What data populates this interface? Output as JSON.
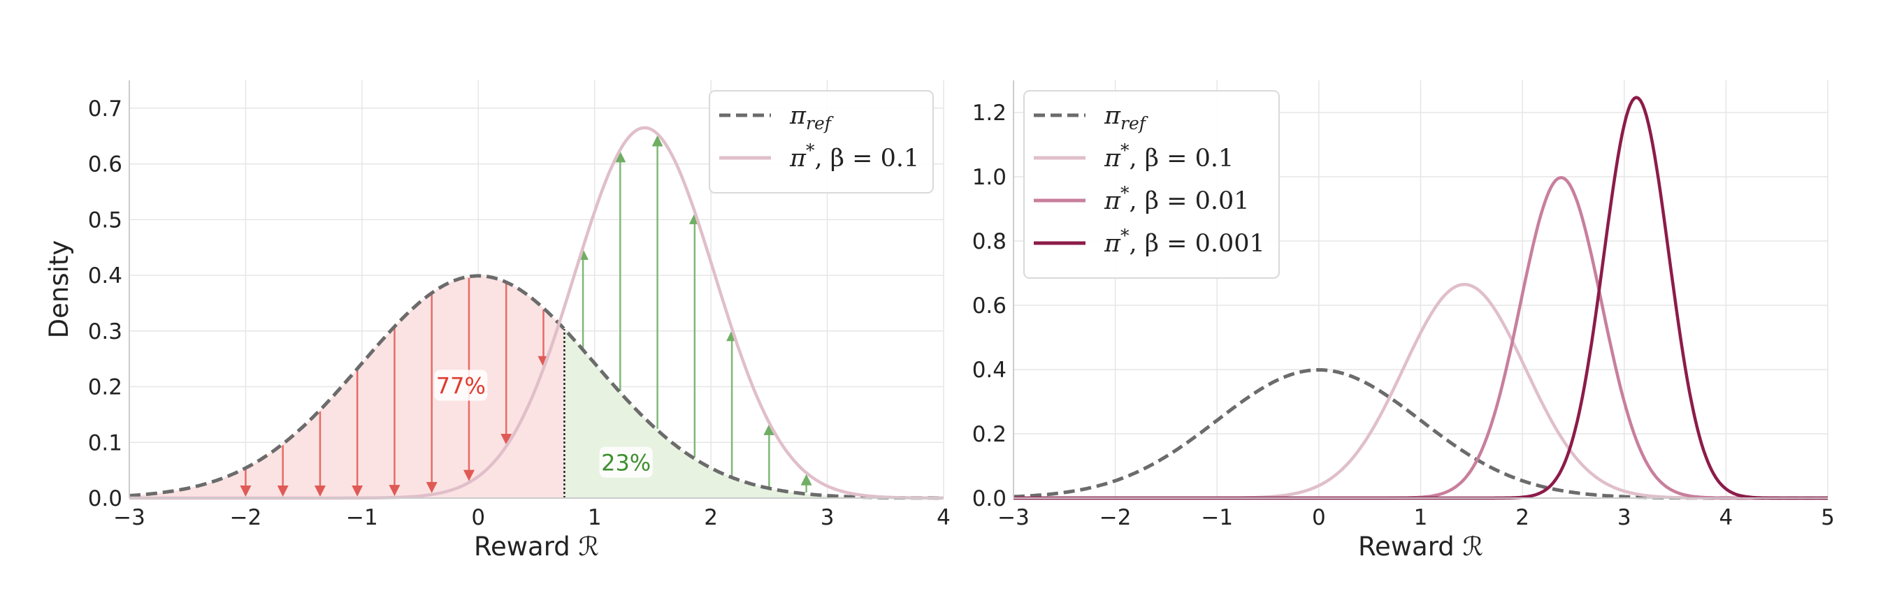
{
  "chart_data": [
    {
      "type": "line",
      "title": "",
      "xlabel": "Reward ℛ",
      "ylabel": "Density",
      "xlim": [
        -3,
        4
      ],
      "ylim": [
        0,
        0.75
      ],
      "xticks": [
        -3,
        -2,
        -1,
        0,
        1,
        2,
        3,
        4
      ],
      "xtick_labels": [
        "−3",
        "−2",
        "−1",
        "0",
        "1",
        "2",
        "3",
        "4"
      ],
      "yticks": [
        0,
        0.1,
        0.2,
        0.3,
        0.4,
        0.5,
        0.6,
        0.7
      ],
      "ytick_labels": [
        "0.0",
        "0.1",
        "0.2",
        "0.3",
        "0.4",
        "0.5",
        "0.6",
        "0.7"
      ],
      "grid": true,
      "legend_position": "top-right",
      "series": [
        {
          "name": "π_ref",
          "legend_main": "π",
          "legend_sub": "ref",
          "legend_rest": "",
          "style": "dashed",
          "color": "#6b6b6b",
          "mean": 0,
          "std": 1,
          "scale": 1
        },
        {
          "name": "π*, β = 0.1",
          "legend_main": "π",
          "legend_sup": "*",
          "legend_rest": ", β = 0.1",
          "style": "solid",
          "color": "#e0bfca",
          "mean": 1.43,
          "std": 0.6,
          "scale": 1
        }
      ],
      "threshold": 0.74,
      "regions": [
        {
          "label": "77%",
          "side": "left",
          "color": "#e03a2e",
          "fill": "#fbe3e3",
          "label_x": -0.15,
          "label_y": 0.2
        },
        {
          "label": "23%",
          "side": "right",
          "color": "#3f8f2f",
          "fill": "#e7f2e1",
          "label_x": 1.27,
          "label_y": 0.062
        }
      ],
      "arrows_down": [
        -2.0,
        -1.68,
        -1.36,
        -1.04,
        -0.72,
        -0.4,
        -0.08,
        0.24,
        0.56
      ],
      "arrows_up": [
        0.9,
        1.22,
        1.54,
        1.86,
        2.18,
        2.5,
        2.82
      ]
    },
    {
      "type": "line",
      "title": "",
      "xlabel": "Reward ℛ",
      "ylabel": "",
      "xlim": [
        -3,
        5
      ],
      "ylim": [
        0,
        1.3
      ],
      "xticks": [
        -3,
        -2,
        -1,
        0,
        1,
        2,
        3,
        4,
        5
      ],
      "xtick_labels": [
        "−3",
        "−2",
        "−1",
        "0",
        "1",
        "2",
        "3",
        "4",
        "5"
      ],
      "yticks": [
        0,
        0.2,
        0.4,
        0.6,
        0.8,
        1.0,
        1.2
      ],
      "ytick_labels": [
        "0.0",
        "0.2",
        "0.4",
        "0.6",
        "0.8",
        "1.0",
        "1.2"
      ],
      "grid": true,
      "legend_position": "top-left",
      "series": [
        {
          "name": "π_ref",
          "legend_main": "π",
          "legend_sub": "ref",
          "legend_rest": "",
          "style": "dashed",
          "color": "#6b6b6b",
          "mean": 0,
          "std": 1,
          "scale": 1
        },
        {
          "name": "π*, β = 0.1",
          "legend_main": "π",
          "legend_sup": "*",
          "legend_rest": ", β = 0.1",
          "style": "solid",
          "color": "#e0bfca",
          "mean": 1.43,
          "std": 0.6,
          "scale": 1
        },
        {
          "name": "π*, β = 0.01",
          "legend_main": "π",
          "legend_sup": "*",
          "legend_rest": ", β = 0.01",
          "style": "solid",
          "color": "#c87f9c",
          "mean": 2.38,
          "std": 0.4,
          "scale": 1
        },
        {
          "name": "π*, β = 0.001",
          "legend_main": "π",
          "legend_sup": "*",
          "legend_rest": ", β = 0.001",
          "style": "solid",
          "color": "#8c1c4a",
          "mean": 3.12,
          "std": 0.32,
          "scale": 1
        }
      ]
    }
  ]
}
